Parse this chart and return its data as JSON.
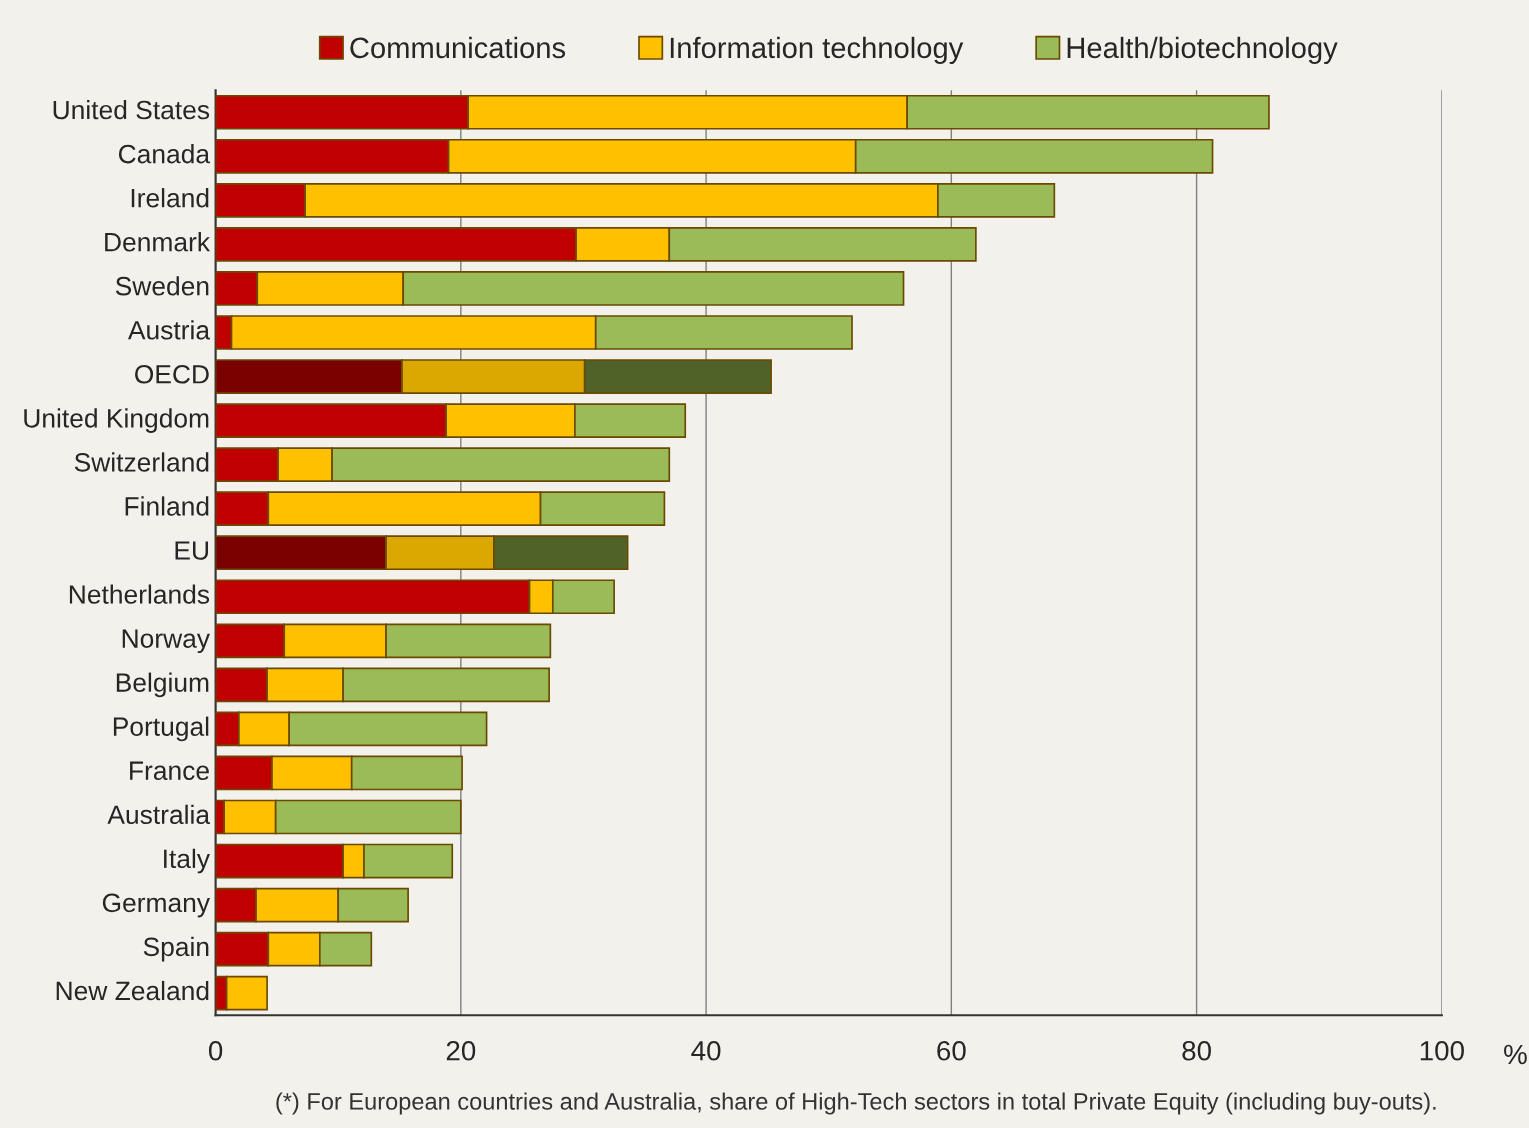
{
  "chart_data": {
    "type": "bar",
    "orientation": "horizontal",
    "stacked": true,
    "categories": [
      "United States",
      "Canada",
      "Ireland",
      "Denmark",
      "Sweden",
      "Austria",
      "OECD",
      "United Kingdom",
      "Switzerland",
      "Finland",
      "EU",
      "Netherlands",
      "Norway",
      "Belgium",
      "Portugal",
      "France",
      "Australia",
      "Italy",
      "Germany",
      "Spain",
      "New Zealand"
    ],
    "series": [
      {
        "name": "Communications",
        "color": "#c00000",
        "colors": [
          "#c00000",
          "#c00000",
          "#c00000",
          "#c00000",
          "#c00000",
          "#c00000",
          "#7b0000",
          "#c00000",
          "#c00000",
          "#c00000",
          "#7b0000",
          "#c00000",
          "#c00000",
          "#c00000",
          "#c00000",
          "#c00000",
          "#c00000",
          "#c00000",
          "#c00000",
          "#c00000",
          "#c00000"
        ],
        "values": [
          20.6,
          19.0,
          7.3,
          29.4,
          3.4,
          1.3,
          15.2,
          18.8,
          5.1,
          4.3,
          13.9,
          25.6,
          5.6,
          4.2,
          1.9,
          4.6,
          0.7,
          10.4,
          3.3,
          4.3,
          0.9
        ]
      },
      {
        "name": "Information technology",
        "color": "#ffc000",
        "colors": [
          "#ffc000",
          "#ffc000",
          "#ffc000",
          "#ffc000",
          "#ffc000",
          "#ffc000",
          "#daa800",
          "#ffc000",
          "#ffc000",
          "#ffc000",
          "#daa800",
          "#ffc000",
          "#ffc000",
          "#ffc000",
          "#ffc000",
          "#ffc000",
          "#ffc000",
          "#ffc000",
          "#ffc000",
          "#ffc000",
          "#ffc000"
        ],
        "values": [
          35.8,
          33.2,
          51.6,
          7.6,
          11.9,
          29.7,
          14.9,
          10.5,
          4.4,
          22.2,
          8.8,
          1.9,
          8.3,
          6.2,
          4.1,
          6.5,
          4.2,
          1.7,
          6.7,
          4.2,
          3.3
        ]
      },
      {
        "name": "Health/biotechnology",
        "color": "#9bbb59",
        "colors": [
          "#9bbb59",
          "#9bbb59",
          "#9bbb59",
          "#9bbb59",
          "#9bbb59",
          "#9bbb59",
          "#4f6228",
          "#9bbb59",
          "#9bbb59",
          "#9bbb59",
          "#4f6228",
          "#9bbb59",
          "#9bbb59",
          "#9bbb59",
          "#9bbb59",
          "#9bbb59",
          "#9bbb59",
          "#9bbb59",
          "#9bbb59",
          "#9bbb59",
          "#9bbb59"
        ],
        "values": [
          29.5,
          29.1,
          9.5,
          25.0,
          40.8,
          20.9,
          15.2,
          9.0,
          27.5,
          10.1,
          10.9,
          5.0,
          13.4,
          16.8,
          16.1,
          9.0,
          15.1,
          7.2,
          5.7,
          4.2,
          null
        ]
      }
    ],
    "xlim": [
      0,
      100
    ],
    "xticks": [
      0,
      20,
      40,
      60,
      80,
      100
    ],
    "xlabel": "%",
    "grid": "x",
    "legend": "top",
    "annotations": [
      "(*) For European countries and Australia, share of High-Tech sectors in total Private Equity (including buy-outs)."
    ]
  }
}
